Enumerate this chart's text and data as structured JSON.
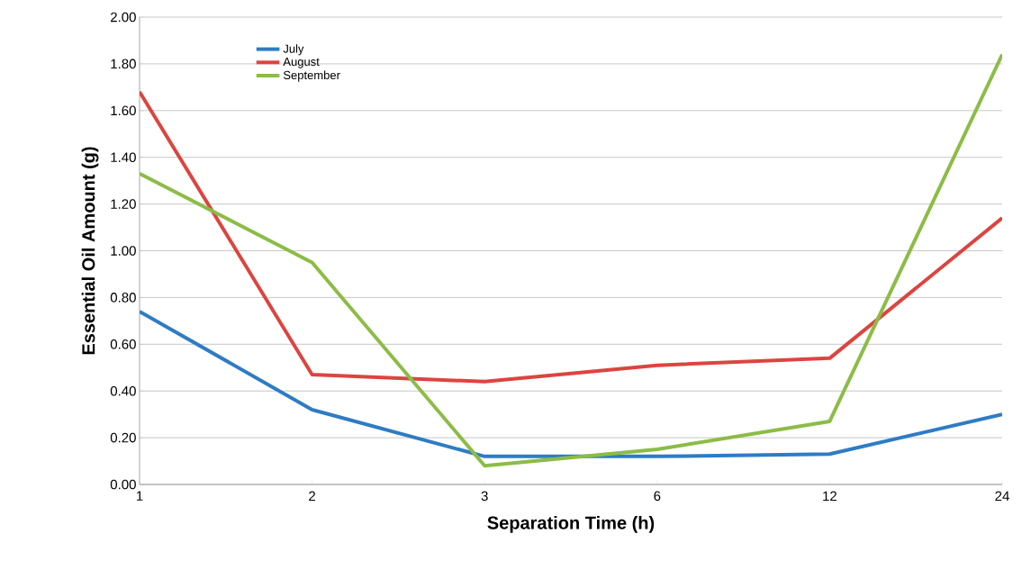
{
  "chart_data": {
    "type": "line",
    "xlabel": "Separation Time (h)",
    "ylabel": "Essential Oil Amount (g)",
    "categories": [
      "1",
      "2",
      "3",
      "6",
      "12",
      "24"
    ],
    "series": [
      {
        "name": "July",
        "color": "#2e7cc4",
        "values": [
          0.74,
          0.32,
          0.12,
          0.12,
          0.13,
          0.3
        ]
      },
      {
        "name": "August",
        "color": "#dc4540",
        "values": [
          1.68,
          0.47,
          0.44,
          0.51,
          0.54,
          1.14
        ]
      },
      {
        "name": "September",
        "color": "#8cbc46",
        "values": [
          1.33,
          0.95,
          0.08,
          0.15,
          0.27,
          1.84
        ]
      }
    ],
    "ylim": [
      0,
      2
    ],
    "yticks": [
      {
        "value": 0,
        "label": "0.00"
      },
      {
        "value": 0.2,
        "label": "0.20"
      },
      {
        "value": 0.4,
        "label": "0.40"
      },
      {
        "value": 0.6,
        "label": "0.60"
      },
      {
        "value": 0.8,
        "label": "0.80"
      },
      {
        "value": 1.0,
        "label": "1.00"
      },
      {
        "value": 1.2,
        "label": "1.20"
      },
      {
        "value": 1.4,
        "label": "1.40"
      },
      {
        "value": 1.6,
        "label": "1.60"
      },
      {
        "value": 1.8,
        "label": "1.80"
      },
      {
        "value": 2.0,
        "label": "2.00"
      }
    ],
    "grid": "y",
    "legend": "top left",
    "marker": "none",
    "line_style": "solid"
  }
}
